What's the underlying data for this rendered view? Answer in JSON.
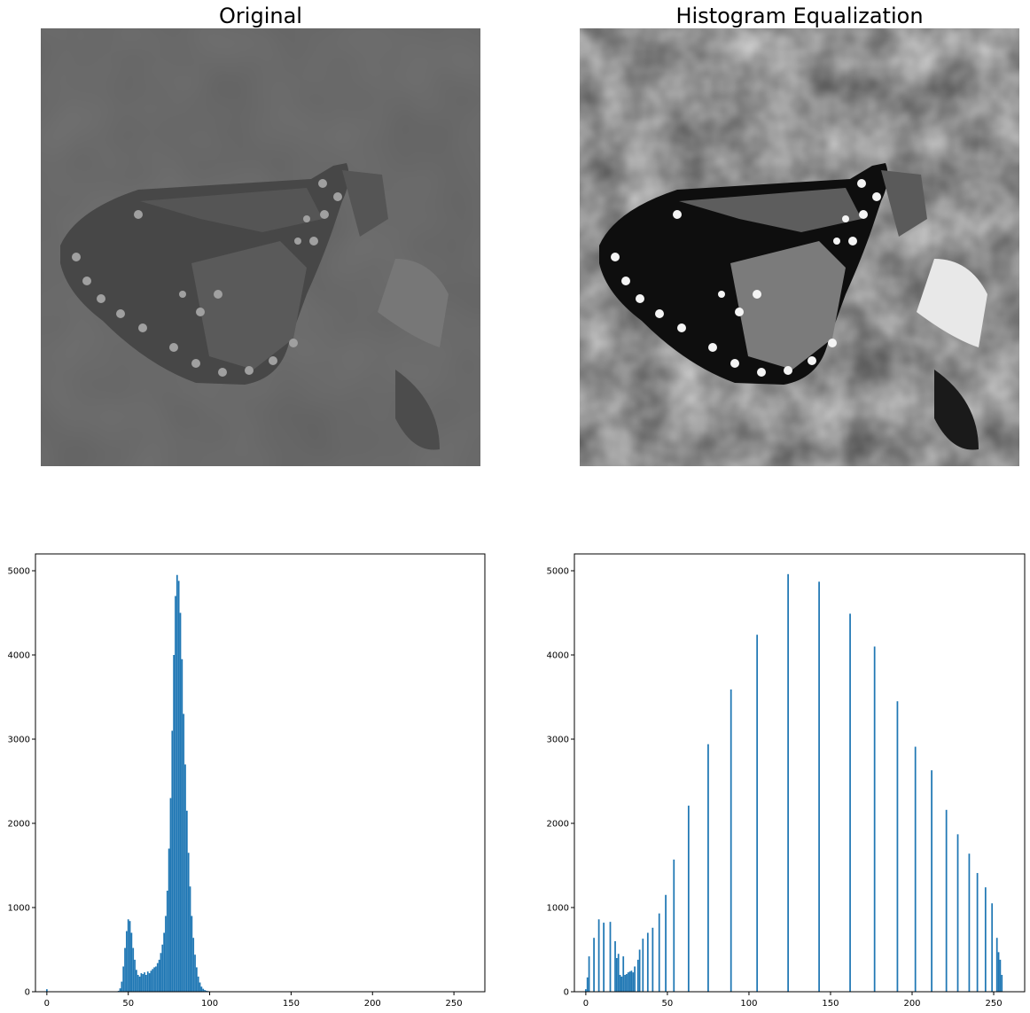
{
  "panels": {
    "original_title": "Original",
    "equalized_title": "Histogram Equalization"
  },
  "images": {
    "original": {
      "subject": "monarch-butterfly-grayscale",
      "contrast": "low"
    },
    "equalized": {
      "subject": "monarch-butterfly-grayscale",
      "contrast": "high"
    }
  },
  "chart_data": [
    {
      "type": "bar",
      "title": "",
      "xlabel": "",
      "ylabel": "",
      "xlim": [
        -7,
        269
      ],
      "ylim": [
        0,
        5200
      ],
      "xticks": [
        0,
        50,
        100,
        150,
        200,
        250
      ],
      "yticks": [
        0,
        1000,
        2000,
        3000,
        4000,
        5000
      ],
      "grid": false,
      "color": "#1f77b4",
      "bins": [
        [
          0,
          30
        ],
        [
          44,
          10
        ],
        [
          45,
          40
        ],
        [
          46,
          120
        ],
        [
          47,
          300
        ],
        [
          48,
          520
        ],
        [
          49,
          720
        ],
        [
          50,
          860
        ],
        [
          51,
          840
        ],
        [
          52,
          700
        ],
        [
          53,
          520
        ],
        [
          54,
          380
        ],
        [
          55,
          260
        ],
        [
          56,
          200
        ],
        [
          57,
          180
        ],
        [
          58,
          220
        ],
        [
          59,
          210
        ],
        [
          60,
          230
        ],
        [
          61,
          200
        ],
        [
          62,
          240
        ],
        [
          63,
          220
        ],
        [
          64,
          250
        ],
        [
          65,
          270
        ],
        [
          66,
          290
        ],
        [
          67,
          300
        ],
        [
          68,
          340
        ],
        [
          69,
          380
        ],
        [
          70,
          460
        ],
        [
          71,
          560
        ],
        [
          72,
          700
        ],
        [
          73,
          900
        ],
        [
          74,
          1200
        ],
        [
          75,
          1700
        ],
        [
          76,
          2300
        ],
        [
          77,
          3100
        ],
        [
          78,
          4000
        ],
        [
          79,
          4700
        ],
        [
          80,
          4950
        ],
        [
          81,
          4880
        ],
        [
          82,
          4500
        ],
        [
          83,
          3950
        ],
        [
          84,
          3300
        ],
        [
          85,
          2700
        ],
        [
          86,
          2150
        ],
        [
          87,
          1650
        ],
        [
          88,
          1250
        ],
        [
          89,
          900
        ],
        [
          90,
          640
        ],
        [
          91,
          440
        ],
        [
          92,
          290
        ],
        [
          93,
          180
        ],
        [
          94,
          110
        ],
        [
          95,
          60
        ],
        [
          96,
          35
        ],
        [
          97,
          20
        ],
        [
          98,
          12
        ],
        [
          99,
          8
        ],
        [
          100,
          5
        ],
        [
          101,
          3
        ]
      ]
    },
    {
      "type": "bar",
      "title": "",
      "xlabel": "",
      "ylabel": "",
      "xlim": [
        -7,
        269
      ],
      "ylim": [
        0,
        5200
      ],
      "xticks": [
        0,
        50,
        100,
        150,
        200,
        250
      ],
      "yticks": [
        0,
        1000,
        2000,
        3000,
        4000,
        5000
      ],
      "grid": false,
      "color": "#1f77b4",
      "bins": [
        [
          0,
          30
        ],
        [
          1,
          170
        ],
        [
          2,
          420
        ],
        [
          5,
          640
        ],
        [
          8,
          860
        ],
        [
          11,
          820
        ],
        [
          15,
          830
        ],
        [
          18,
          600
        ],
        [
          19,
          400
        ],
        [
          20,
          450
        ],
        [
          21,
          200
        ],
        [
          22,
          180
        ],
        [
          23,
          420
        ],
        [
          24,
          200
        ],
        [
          25,
          210
        ],
        [
          26,
          230
        ],
        [
          27,
          240
        ],
        [
          28,
          250
        ],
        [
          29,
          230
        ],
        [
          30,
          300
        ],
        [
          32,
          380
        ],
        [
          33,
          500
        ],
        [
          35,
          630
        ],
        [
          38,
          700
        ],
        [
          41,
          760
        ],
        [
          45,
          930
        ],
        [
          49,
          1150
        ],
        [
          54,
          1570
        ],
        [
          63,
          2210
        ],
        [
          75,
          2940
        ],
        [
          89,
          3590
        ],
        [
          105,
          4240
        ],
        [
          124,
          4960
        ],
        [
          143,
          4870
        ],
        [
          162,
          4490
        ],
        [
          177,
          4100
        ],
        [
          191,
          3450
        ],
        [
          202,
          2910
        ],
        [
          212,
          2630
        ],
        [
          221,
          2160
        ],
        [
          228,
          1870
        ],
        [
          235,
          1640
        ],
        [
          240,
          1410
        ],
        [
          245,
          1240
        ],
        [
          249,
          1050
        ],
        [
          252,
          640
        ],
        [
          253,
          470
        ],
        [
          254,
          380
        ],
        [
          255,
          200
        ]
      ]
    }
  ]
}
